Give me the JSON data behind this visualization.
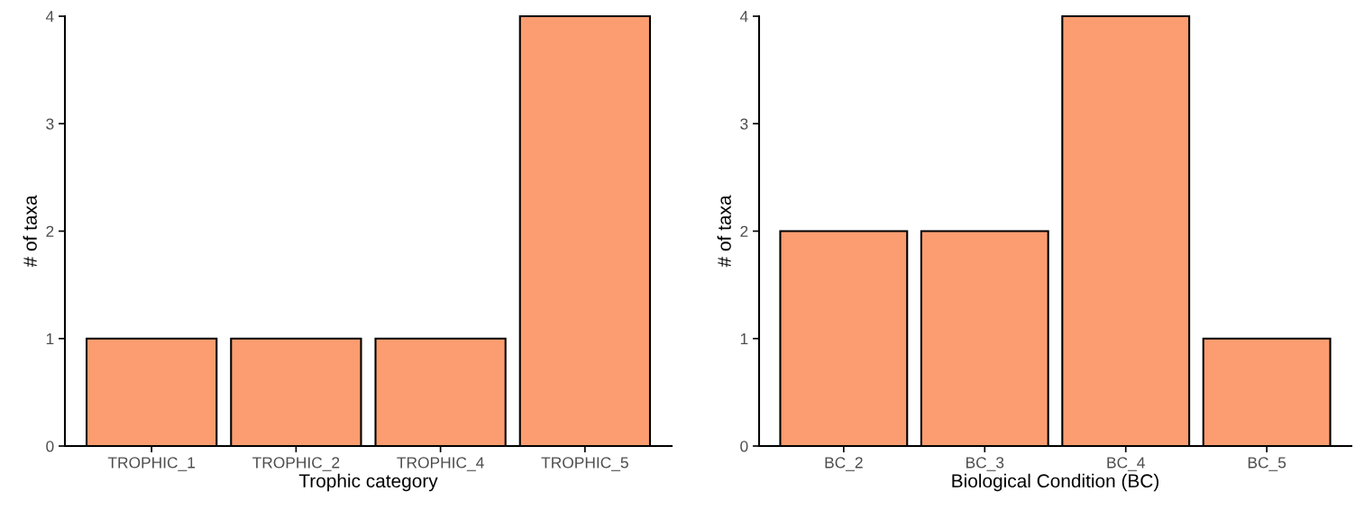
{
  "chart_data": [
    {
      "type": "bar",
      "xlabel": "Trophic category",
      "ylabel": "# of taxa",
      "categories": [
        "TROPHIC_1",
        "TROPHIC_2",
        "TROPHIC_4",
        "TROPHIC_5"
      ],
      "values": [
        1,
        1,
        1,
        4
      ],
      "color": "#fb9d70",
      "ylim": [
        0,
        4
      ],
      "yticks": [
        0,
        1,
        2,
        3,
        4
      ],
      "grid": false,
      "legend": false
    },
    {
      "type": "bar",
      "xlabel": "Biological Condition (BC)",
      "ylabel": "# of taxa",
      "categories": [
        "BC_2",
        "BC_3",
        "BC_4",
        "BC_5"
      ],
      "values": [
        2,
        2,
        4,
        1
      ],
      "color": "#fb9d70",
      "ylim": [
        0,
        4
      ],
      "yticks": [
        0,
        1,
        2,
        3,
        4
      ],
      "grid": false,
      "legend": false
    }
  ]
}
